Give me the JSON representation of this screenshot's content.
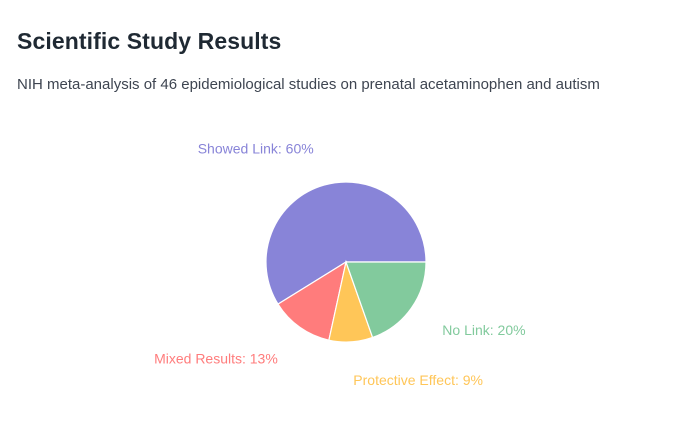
{
  "title": "Scientific Study Results",
  "subtitle": "NIH meta-analysis of 46 epidemiological studies on prenatal acetaminophen and autism",
  "chart_data": {
    "type": "pie",
    "title": "Scientific Study Results",
    "slices": [
      {
        "name": "Showed Link",
        "value": 60,
        "label": "Showed Link: 60%",
        "color": "#8884d8"
      },
      {
        "name": "Mixed Results",
        "value": 13,
        "label": "Mixed Results: 13%",
        "color": "#ff7c7c"
      },
      {
        "name": "Protective Effect",
        "value": 9,
        "label": "Protective Effect: 9%",
        "color": "#ffc658"
      },
      {
        "name": "No Link",
        "value": 20,
        "label": "No Link: 20%",
        "color": "#82ca9d"
      }
    ]
  }
}
